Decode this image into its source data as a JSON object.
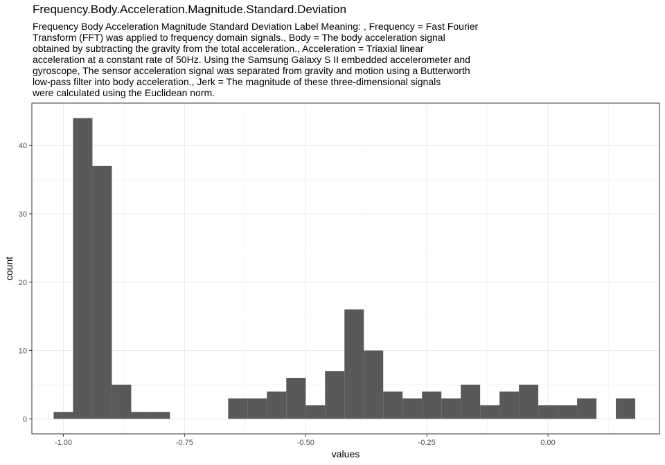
{
  "chart_data": {
    "type": "bar",
    "title": "Frequency.Body.Acceleration.Magnitude.Standard.Deviation",
    "subtitle_lines": [
      "Frequency Body Acceleration Magnitude Standard Deviation Label Meaning: , Frequency = Fast Fourier",
      "Transform (FFT) was applied to frequency domain signals., Body = The body acceleration signal",
      "obtained by subtracting the gravity from the total acceleration., Acceleration = Triaxial linear",
      "acceleration at a constant rate of 50Hz. Using the Samsung Galaxy S II embedded accelerometer and",
      "gyroscope, The sensor acceleration signal was separated from gravity and motion using a Butterworth",
      "low-pass filter into body acceleration., Jerk = The magnitude of these three-dimensional signals",
      "were calculated using the Euclidean norm."
    ],
    "xlabel": "values",
    "ylabel": "count",
    "xlim": [
      -1.065,
      0.23
    ],
    "ylim": [
      -2.2,
      46.2
    ],
    "x_ticks": [
      -1.0,
      -0.75,
      -0.5,
      -0.25,
      0.0
    ],
    "x_tick_labels": [
      "-1.00",
      "-0.75",
      "-0.50",
      "-0.25",
      "0.00"
    ],
    "y_ticks": [
      0,
      10,
      20,
      30,
      40
    ],
    "y_tick_labels": [
      "0",
      "10",
      "20",
      "30",
      "40"
    ],
    "grid": true,
    "bar_color": "#595959",
    "bins": [
      {
        "x0": -1.02,
        "x1": -0.98,
        "count": 1
      },
      {
        "x0": -0.98,
        "x1": -0.94,
        "count": 44
      },
      {
        "x0": -0.94,
        "x1": -0.9,
        "count": 37
      },
      {
        "x0": -0.9,
        "x1": -0.86,
        "count": 5
      },
      {
        "x0": -0.86,
        "x1": -0.82,
        "count": 1
      },
      {
        "x0": -0.82,
        "x1": -0.78,
        "count": 1
      },
      {
        "x0": -0.78,
        "x1": -0.74,
        "count": 0
      },
      {
        "x0": -0.74,
        "x1": -0.7,
        "count": 0
      },
      {
        "x0": -0.7,
        "x1": -0.66,
        "count": 0
      },
      {
        "x0": -0.66,
        "x1": -0.62,
        "count": 3
      },
      {
        "x0": -0.62,
        "x1": -0.58,
        "count": 3
      },
      {
        "x0": -0.58,
        "x1": -0.54,
        "count": 4
      },
      {
        "x0": -0.54,
        "x1": -0.5,
        "count": 6
      },
      {
        "x0": -0.5,
        "x1": -0.46,
        "count": 2
      },
      {
        "x0": -0.46,
        "x1": -0.42,
        "count": 7
      },
      {
        "x0": -0.42,
        "x1": -0.38,
        "count": 16
      },
      {
        "x0": -0.38,
        "x1": -0.34,
        "count": 10
      },
      {
        "x0": -0.34,
        "x1": -0.3,
        "count": 4
      },
      {
        "x0": -0.3,
        "x1": -0.26,
        "count": 3
      },
      {
        "x0": -0.26,
        "x1": -0.22,
        "count": 4
      },
      {
        "x0": -0.22,
        "x1": -0.18,
        "count": 3
      },
      {
        "x0": -0.18,
        "x1": -0.14,
        "count": 5
      },
      {
        "x0": -0.14,
        "x1": -0.1,
        "count": 2
      },
      {
        "x0": -0.1,
        "x1": -0.06,
        "count": 4
      },
      {
        "x0": -0.06,
        "x1": -0.02,
        "count": 5
      },
      {
        "x0": -0.02,
        "x1": 0.02,
        "count": 2
      },
      {
        "x0": 0.02,
        "x1": 0.06,
        "count": 2
      },
      {
        "x0": 0.06,
        "x1": 0.1,
        "count": 3
      },
      {
        "x0": 0.1,
        "x1": 0.14,
        "count": 0
      },
      {
        "x0": 0.14,
        "x1": 0.18,
        "count": 3
      }
    ]
  }
}
